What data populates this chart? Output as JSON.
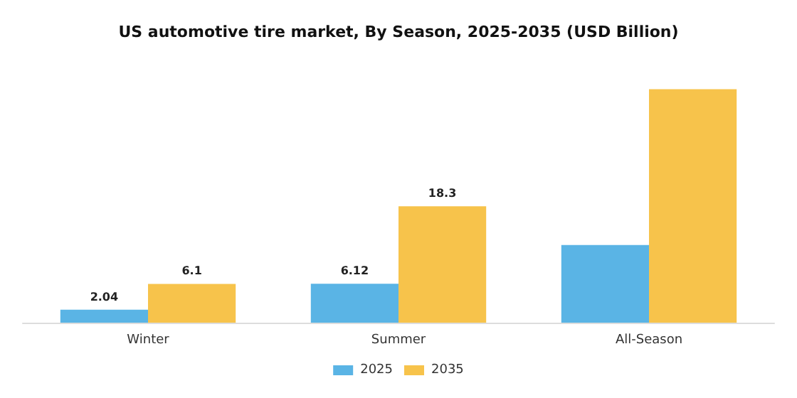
{
  "chart_data": {
    "type": "bar",
    "title": "US automotive tire market, By Season, 2025-2035 (USD Billion)",
    "categories": [
      "Winter",
      "Summer",
      "All-Season"
    ],
    "series": [
      {
        "name": "2025",
        "color": "#5ab4e5",
        "values": [
          2.04,
          6.12,
          12.2
        ],
        "value_labels": [
          "2.04",
          "6.12",
          null
        ]
      },
      {
        "name": "2035",
        "color": "#f7c34b",
        "values": [
          6.1,
          18.3,
          36.7
        ],
        "value_labels": [
          "6.1",
          "18.3",
          null
        ]
      }
    ],
    "legend": "bottom"
  }
}
